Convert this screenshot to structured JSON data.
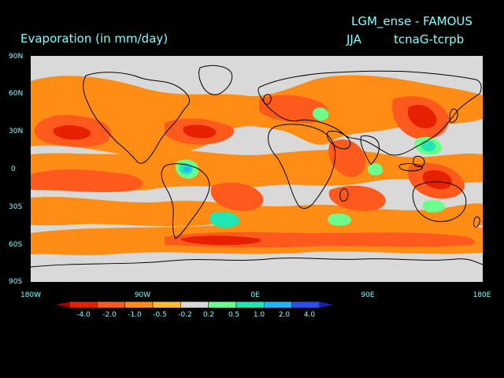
{
  "header": {
    "title": "Evaporation (in mm/day)",
    "model": "LGM_ense - FAMOUS",
    "season": "JJA",
    "difference": "tcnaG-tcrpb"
  },
  "map": {
    "projection": "cylindrical-equidistant",
    "lon_range": [
      -180,
      180
    ],
    "lat_range": [
      -90,
      90
    ],
    "lat_labels": [
      "90N",
      "60N",
      "30N",
      "0",
      "30S",
      "60S",
      "90S"
    ],
    "lon_labels": [
      "180W",
      "90W",
      "0E",
      "90E",
      "180E"
    ],
    "background_color": "#d9d9d9",
    "coastline_color": "#000000"
  },
  "colorbar": {
    "labels": [
      "-4.0",
      "-2.0",
      "-1.0",
      "-0.5",
      "-0.2",
      "0.2",
      "0.5",
      "1.0",
      "2.0",
      "4.0"
    ],
    "colors": [
      "#a00000",
      "#e62000",
      "#ff5a1e",
      "#ff8c14",
      "#ffbe32",
      "#d9d9d9",
      "#6cff8c",
      "#20e6b4",
      "#1eb4ff",
      "#2850f0",
      "#1e1eb4"
    ]
  }
}
